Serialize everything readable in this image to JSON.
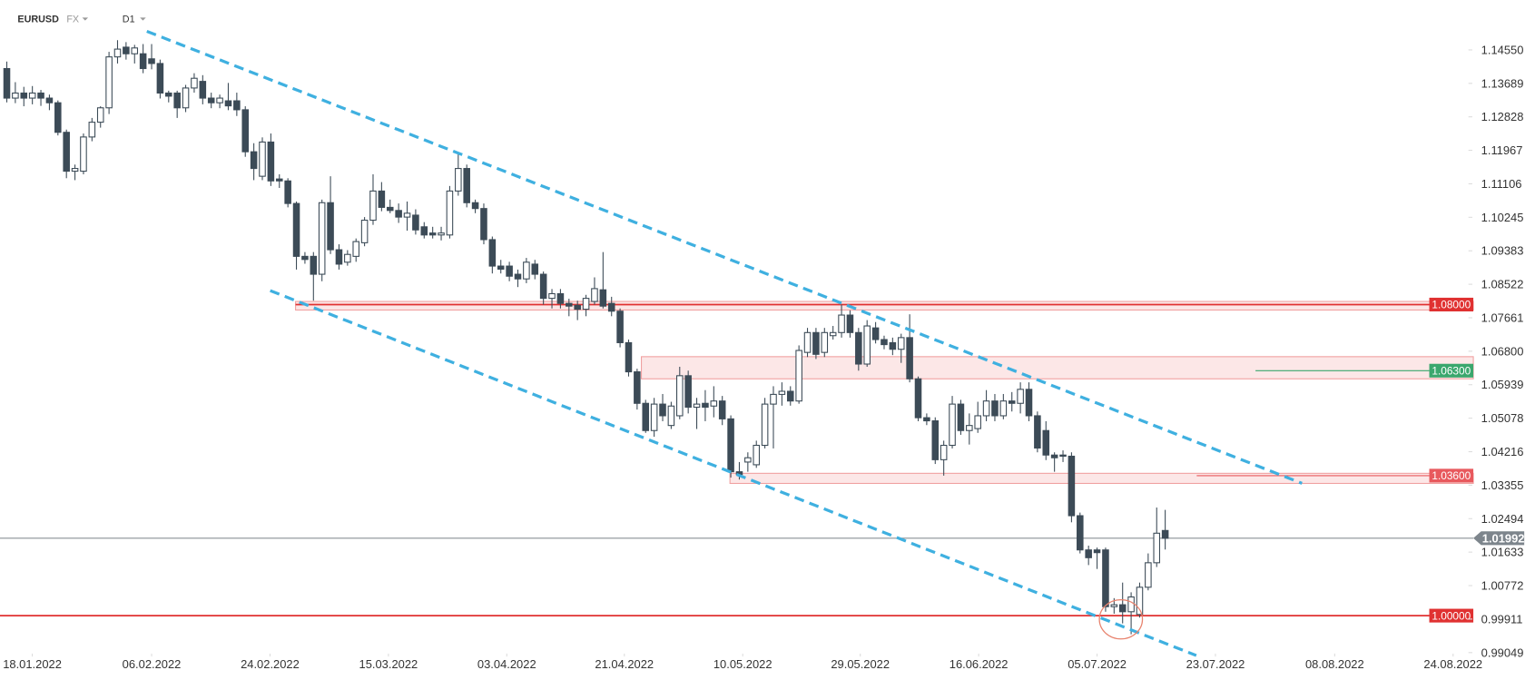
{
  "header": {
    "symbol": "EURUSD",
    "market": "FX",
    "timeframe": "D1"
  },
  "chart_data": {
    "type": "candlestick",
    "ohlc": [
      [
        1.1407,
        1.1425,
        1.132,
        1.1331
      ],
      [
        1.1331,
        1.1372,
        1.1318,
        1.1344
      ],
      [
        1.1344,
        1.136,
        1.131,
        1.1331
      ],
      [
        1.1331,
        1.1362,
        1.1315,
        1.1344
      ],
      [
        1.1344,
        1.1352,
        1.1311,
        1.1331
      ],
      [
        1.1331,
        1.134,
        1.13,
        1.1319
      ],
      [
        1.1319,
        1.1325,
        1.1235,
        1.1243
      ],
      [
        1.1243,
        1.125,
        1.1125,
        1.1143
      ],
      [
        1.1143,
        1.116,
        1.112,
        1.115
      ],
      [
        1.1143,
        1.124,
        1.1135,
        1.1231
      ],
      [
        1.1231,
        1.128,
        1.122,
        1.1269
      ],
      [
        1.1269,
        1.131,
        1.1255,
        1.1306
      ],
      [
        1.1306,
        1.145,
        1.129,
        1.1437
      ],
      [
        1.1437,
        1.148,
        1.142,
        1.1457
      ],
      [
        1.1462,
        1.1475,
        1.143,
        1.1445
      ],
      [
        1.1445,
        1.1468,
        1.142,
        1.146
      ],
      [
        1.1445,
        1.147,
        1.1395,
        1.1407
      ],
      [
        1.1432,
        1.147,
        1.1405,
        1.142
      ],
      [
        1.142,
        1.143,
        1.133,
        1.1344
      ],
      [
        1.1344,
        1.135,
        1.132,
        1.1336
      ],
      [
        1.1344,
        1.135,
        1.128,
        1.1306
      ],
      [
        1.1306,
        1.1365,
        1.1295,
        1.1357
      ],
      [
        1.1357,
        1.1395,
        1.1345,
        1.1382
      ],
      [
        1.1374,
        1.139,
        1.1315,
        1.1331
      ],
      [
        1.1331,
        1.1345,
        1.1305,
        1.1319
      ],
      [
        1.1319,
        1.134,
        1.1305,
        1.1331
      ],
      [
        1.1324,
        1.137,
        1.13,
        1.1311
      ],
      [
        1.1324,
        1.1345,
        1.1285,
        1.1301
      ],
      [
        1.1301,
        1.131,
        1.118,
        1.1193
      ],
      [
        1.1193,
        1.1215,
        1.112,
        1.115
      ],
      [
        1.113,
        1.123,
        1.112,
        1.1218
      ],
      [
        1.1218,
        1.124,
        1.1105,
        1.1118
      ],
      [
        1.1123,
        1.1135,
        1.11,
        1.1118
      ],
      [
        1.1118,
        1.1125,
        1.105,
        1.106
      ],
      [
        1.106,
        1.1065,
        1.089,
        1.0924
      ],
      [
        1.0924,
        1.0935,
        1.0905,
        1.0916
      ],
      [
        1.0924,
        1.0935,
        1.081,
        1.0878
      ],
      [
        1.0878,
        1.107,
        1.086,
        1.1062
      ],
      [
        1.1062,
        1.113,
        1.093,
        1.0941
      ],
      [
        1.0941,
        1.0955,
        1.089,
        1.0904
      ],
      [
        1.0909,
        1.094,
        1.09,
        1.0929
      ],
      [
        1.0924,
        1.097,
        1.091,
        1.0962
      ],
      [
        1.0959,
        1.1025,
        1.095,
        1.1017
      ],
      [
        1.1017,
        1.1135,
        1.1005,
        1.1092
      ],
      [
        1.1092,
        1.1115,
        1.104,
        1.105
      ],
      [
        1.105,
        1.107,
        1.1035,
        1.1042
      ],
      [
        1.1042,
        1.106,
        1.101,
        1.1025
      ],
      [
        1.1025,
        1.1065,
        1.099,
        1.1035
      ],
      [
        1.103,
        1.1045,
        1.098,
        1.0992
      ],
      [
        1.1,
        1.1012,
        1.097,
        1.0979
      ],
      [
        1.0984,
        1.1,
        1.097,
        1.0979
      ],
      [
        1.0979,
        1.1,
        1.0965,
        1.0984
      ],
      [
        1.0979,
        1.1105,
        1.097,
        1.1092
      ],
      [
        1.1092,
        1.119,
        1.108,
        1.115
      ],
      [
        1.115,
        1.116,
        1.105,
        1.1062
      ],
      [
        1.1062,
        1.107,
        1.1035,
        1.1047
      ],
      [
        1.1047,
        1.106,
        1.0955,
        1.0967
      ],
      [
        1.0967,
        1.0975,
        1.088,
        1.0899
      ],
      [
        1.0899,
        1.0915,
        1.088,
        1.0891
      ],
      [
        1.0899,
        1.091,
        1.086,
        1.0873
      ],
      [
        1.0878,
        1.089,
        1.0845,
        1.0866
      ],
      [
        1.0866,
        1.092,
        1.0855,
        1.0909
      ],
      [
        1.0904,
        1.0915,
        1.0865,
        1.0878
      ],
      [
        1.0878,
        1.0885,
        1.08,
        1.0816
      ],
      [
        1.0816,
        1.084,
        1.079,
        1.0828
      ],
      [
        1.0828,
        1.084,
        1.079,
        1.0803
      ],
      [
        1.0803,
        1.0815,
        1.077,
        1.0796
      ],
      [
        1.0798,
        1.081,
        1.076,
        1.0788
      ],
      [
        1.0788,
        1.0825,
        1.077,
        1.0816
      ],
      [
        1.0808,
        1.087,
        1.08,
        1.0841
      ],
      [
        1.0838,
        1.0935,
        1.079,
        1.0796
      ],
      [
        1.0803,
        1.082,
        1.077,
        1.0783
      ],
      [
        1.0783,
        1.079,
        1.069,
        1.0702
      ],
      [
        1.0702,
        1.071,
        1.0615,
        1.0627
      ],
      [
        1.0627,
        1.0635,
        1.053,
        1.0546
      ],
      [
        1.0546,
        1.0555,
        1.047,
        1.0476
      ],
      [
        1.0476,
        1.056,
        1.046,
        1.0544
      ],
      [
        1.0544,
        1.057,
        1.05,
        1.0514
      ],
      [
        1.0489,
        1.055,
        1.048,
        1.0539
      ],
      [
        1.0514,
        1.064,
        1.0505,
        1.0617
      ],
      [
        1.0617,
        1.063,
        1.052,
        1.0536
      ],
      [
        1.0536,
        1.056,
        1.048,
        1.0544
      ],
      [
        1.0546,
        1.058,
        1.05,
        1.0536
      ],
      [
        1.0539,
        1.059,
        1.051,
        1.0552
      ],
      [
        1.0552,
        1.0565,
        1.049,
        1.0506
      ],
      [
        1.0506,
        1.0515,
        1.0355,
        1.037
      ],
      [
        1.037,
        1.0395,
        1.035,
        1.0363
      ],
      [
        1.0395,
        1.042,
        1.037,
        1.0406
      ],
      [
        1.0388,
        1.045,
        1.038,
        1.0438
      ],
      [
        1.0438,
        1.056,
        1.043,
        1.0544
      ],
      [
        1.0544,
        1.059,
        1.043,
        1.0569
      ],
      [
        1.0569,
        1.06,
        1.054,
        1.0577
      ],
      [
        1.0577,
        1.059,
        1.054,
        1.0552
      ],
      [
        1.0552,
        1.0695,
        1.0545,
        1.0682
      ],
      [
        1.0677,
        1.074,
        1.0665,
        1.0728
      ],
      [
        1.0728,
        1.074,
        1.066,
        1.0672
      ],
      [
        1.0677,
        1.074,
        1.0665,
        1.0728
      ],
      [
        1.072,
        1.0745,
        1.071,
        1.0728
      ],
      [
        1.0728,
        1.08,
        1.0715,
        1.0773
      ],
      [
        1.0773,
        1.0785,
        1.0715,
        1.0728
      ],
      [
        1.0728,
        1.074,
        1.063,
        1.0647
      ],
      [
        1.0647,
        1.076,
        1.064,
        1.0745
      ],
      [
        1.074,
        1.0755,
        1.07,
        1.071
      ],
      [
        1.071,
        1.072,
        1.0685,
        1.0697
      ],
      [
        1.0702,
        1.0715,
        1.067,
        1.0685
      ],
      [
        1.0685,
        1.0725,
        1.065,
        1.0715
      ],
      [
        1.0715,
        1.0775,
        1.06,
        1.0609
      ],
      [
        1.0609,
        1.0615,
        1.05,
        1.0509
      ],
      [
        1.0509,
        1.052,
        1.049,
        1.0501
      ],
      [
        1.0501,
        1.051,
        1.039,
        1.0401
      ],
      [
        1.0401,
        1.045,
        1.036,
        1.0438
      ],
      [
        1.0438,
        1.0565,
        1.043,
        1.0544
      ],
      [
        1.0544,
        1.0555,
        1.0465,
        1.0476
      ],
      [
        1.0476,
        1.052,
        1.044,
        1.0489
      ],
      [
        1.0481,
        1.055,
        1.047,
        1.0514
      ],
      [
        1.0514,
        1.058,
        1.05,
        1.0552
      ],
      [
        1.0552,
        1.057,
        1.05,
        1.0514
      ],
      [
        1.0514,
        1.057,
        1.0505,
        1.0552
      ],
      [
        1.0552,
        1.0575,
        1.0525,
        1.0546
      ],
      [
        1.0546,
        1.06,
        1.052,
        1.0582
      ],
      [
        1.0582,
        1.06,
        1.05,
        1.0514
      ],
      [
        1.0514,
        1.0525,
        1.042,
        1.0431
      ],
      [
        1.0476,
        1.05,
        1.04,
        1.0413
      ],
      [
        1.0413,
        1.042,
        1.037,
        1.0406
      ],
      [
        1.0413,
        1.0425,
        1.0395,
        1.041
      ],
      [
        1.041,
        1.042,
        1.024,
        1.0257
      ],
      [
        1.0257,
        1.0265,
        1.016,
        1.0169
      ],
      [
        1.0169,
        1.018,
        1.013,
        1.0149
      ],
      [
        1.0169,
        1.0175,
        1.012,
        1.0162
      ],
      [
        1.0169,
        1.0175,
        1.001,
        1.0023
      ],
      [
        1.0023,
        1.0045,
        1.0005,
        1.0028
      ],
      [
        1.0028,
        1.0085,
        0.998,
        1.001
      ],
      [
        1.001,
        1.006,
        0.9952,
        1.0048
      ],
      [
        1.0003,
        1.0085,
        0.9995,
        1.0073
      ],
      [
        1.0073,
        1.016,
        1.0065,
        1.0136
      ],
      [
        1.0136,
        1.0278,
        1.0125,
        1.0212
      ],
      [
        1.0219,
        1.0272,
        1.017,
        1.0199
      ]
    ],
    "bull_color": "#ffffff",
    "bear_color": "#3c4b57",
    "xlim": [
      -0.8,
      171.6
    ],
    "xticks": [
      {
        "value": 2.99,
        "label": "18.01.2022"
      },
      {
        "value": 17.0,
        "label": "06.02.2022"
      },
      {
        "value": 30.9,
        "label": "24.02.2022"
      },
      {
        "value": 44.8,
        "label": "15.03.2022"
      },
      {
        "value": 58.7,
        "label": "03.04.2022"
      },
      {
        "value": 72.5,
        "label": "21.04.2022"
      },
      {
        "value": 86.4,
        "label": "10.05.2022"
      },
      {
        "value": 100.2,
        "label": "29.05.2022"
      },
      {
        "value": 114.1,
        "label": "16.06.2022"
      },
      {
        "value": 128.0,
        "label": "05.07.2022"
      },
      {
        "value": 141.9,
        "label": "23.07.2022"
      },
      {
        "value": 155.9,
        "label": "08.08.2022"
      },
      {
        "value": 169.8,
        "label": "24.08.2022"
      }
    ],
    "ylim": [
      0.99049,
      1.15833
    ],
    "yticks": [
      {
        "value": 1.1455,
        "label": "1.14550"
      },
      1.13689,
      1.12828,
      1.11967,
      1.11106,
      1.10245,
      1.09383,
      1.08522,
      1.07661,
      {
        "value": 1.068,
        "label": "1.06800"
      },
      1.05939,
      1.05078,
      1.04216,
      1.03355,
      1.02494,
      1.01633,
      1.00772,
      0.99911,
      0.99049
    ],
    "levels": [
      {
        "value": 1.08,
        "label": "1.08000",
        "color": "#e03131",
        "x": 33.9
      },
      {
        "value": 1.063,
        "label": "1.06300",
        "color": "#3aa76d",
        "x": 146.6
      },
      {
        "value": 1.036,
        "label": "1.03600",
        "color": "#e8595d",
        "x": 139.7
      },
      {
        "value": 1,
        "label": "1.00000",
        "color": "#e03131"
      }
    ],
    "zones": [
      {
        "x": 33.9,
        "ylim": [
          1.0786,
          1.0808
        ]
      },
      {
        "x": 74.5,
        "ylim": [
          1.0609,
          1.0666
        ]
      },
      {
        "x": 84.9,
        "ylim": [
          1.034,
          1.0366
        ]
      }
    ],
    "last": {
      "value": 1.01992,
      "label": "1.01992",
      "color": "#7d858c"
    }
  }
}
